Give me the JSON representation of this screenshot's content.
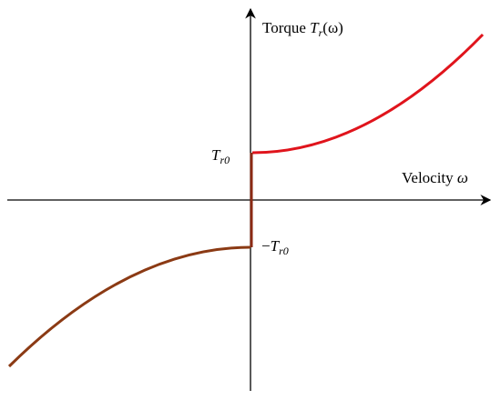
{
  "y_axis_label": {
    "text": "Torque",
    "symbol": "T",
    "subscript": "r",
    "argument": "(ω)"
  },
  "x_axis_label": {
    "text": "Velocity",
    "symbol": "ω"
  },
  "positive_level": {
    "symbol": "T",
    "subscript": "r0"
  },
  "negative_level": {
    "sign": "−",
    "symbol": "T",
    "subscript": "r0"
  }
}
